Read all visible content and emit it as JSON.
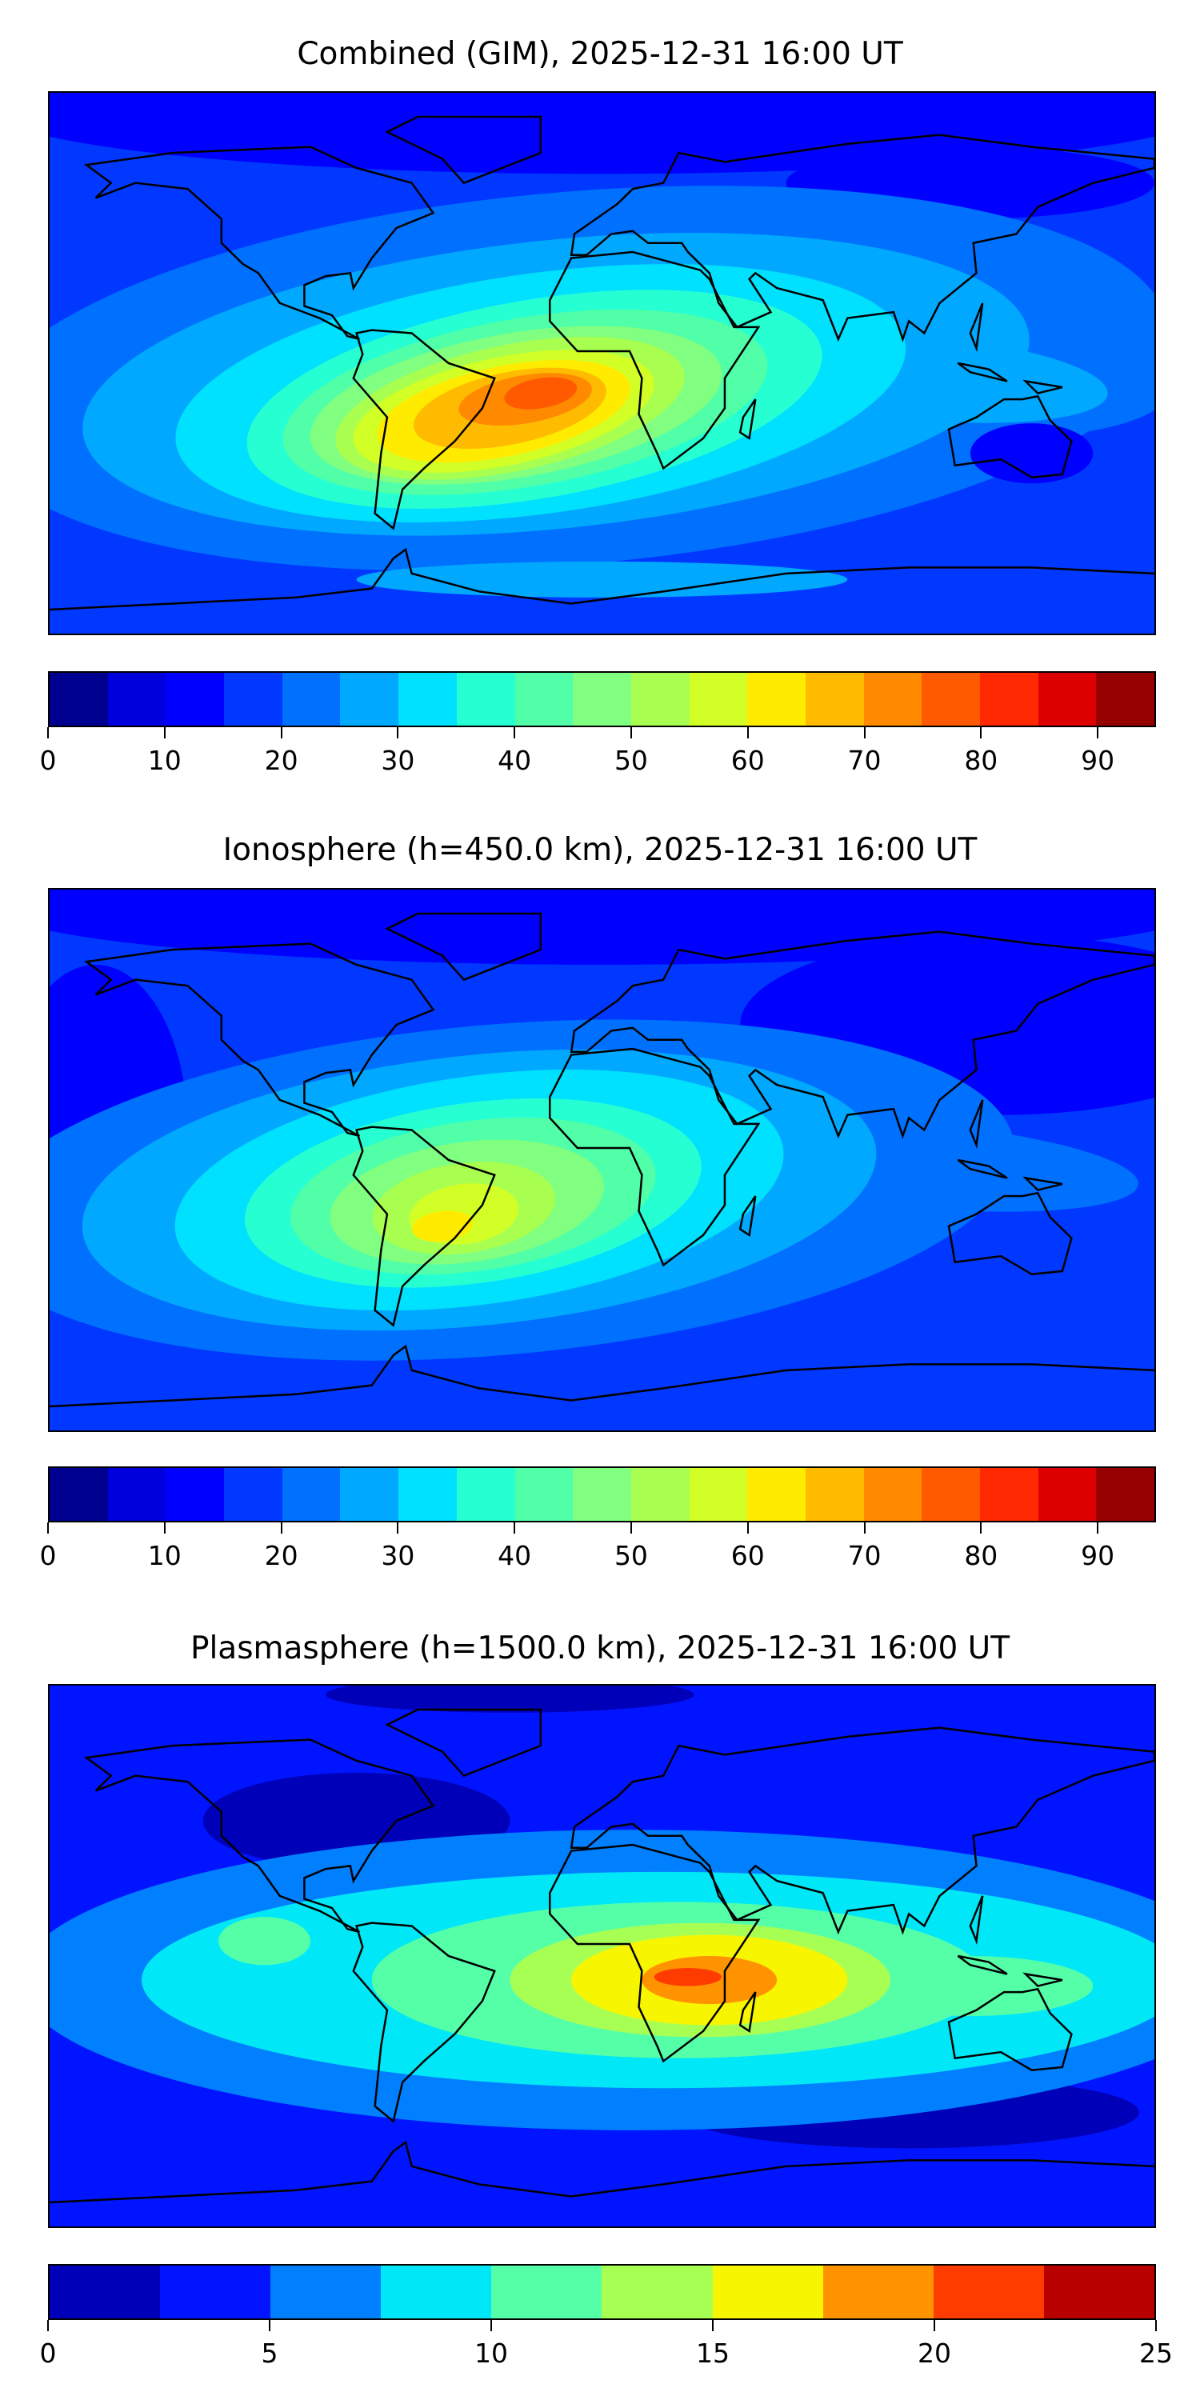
{
  "chart_data": [
    {
      "type": "heatmap",
      "title": "Combined (GIM), 2025-12-31 16:00 UT",
      "levels": [
        0,
        95
      ],
      "level_step": 5,
      "ticks": [
        "0",
        "10",
        "20",
        "30",
        "40",
        "50",
        "60",
        "70",
        "80",
        "90"
      ],
      "tick_values": [
        0,
        10,
        20,
        30,
        40,
        50,
        60,
        70,
        80,
        90
      ],
      "colors": [
        "#000090",
        "#0000dc",
        "#0000ff",
        "#0038ff",
        "#0070ff",
        "#00a8ff",
        "#00e0ff",
        "#26ffd2",
        "#50ffa8",
        "#80ff80",
        "#a8ff50",
        "#d2ff26",
        "#ffeb00",
        "#ffbb00",
        "#ff8a00",
        "#ff5a00",
        "#ff2800",
        "#dc0000",
        "#960000"
      ],
      "peak_region": "South America / South Atlantic",
      "approx_peak_value": 80
    },
    {
      "type": "heatmap",
      "title": "Ionosphere  (h=450.0 km), 2025-12-31 16:00 UT",
      "levels": [
        0,
        95
      ],
      "level_step": 5,
      "ticks": [
        "0",
        "10",
        "20",
        "30",
        "40",
        "50",
        "60",
        "70",
        "80",
        "90"
      ],
      "tick_values": [
        0,
        10,
        20,
        30,
        40,
        50,
        60,
        70,
        80,
        90
      ],
      "colors": [
        "#000090",
        "#0000dc",
        "#0000ff",
        "#0038ff",
        "#0070ff",
        "#00a8ff",
        "#00e0ff",
        "#26ffd2",
        "#50ffa8",
        "#80ff80",
        "#a8ff50",
        "#d2ff26",
        "#ffeb00",
        "#ffbb00",
        "#ff8a00",
        "#ff5a00",
        "#ff2800",
        "#dc0000",
        "#960000"
      ],
      "peak_region": "South America",
      "approx_peak_value": 60
    },
    {
      "type": "heatmap",
      "title": "Plasmasphere (h=1500.0 km), 2025-12-31 16:00 UT",
      "levels": [
        0,
        25
      ],
      "level_step": 2.5,
      "ticks": [
        "0",
        "5",
        "10",
        "15",
        "20",
        "25"
      ],
      "tick_values": [
        0,
        5,
        10,
        15,
        20,
        25
      ],
      "colors": [
        "#0000b8",
        "#0014ff",
        "#0080ff",
        "#00e8f8",
        "#54ffa8",
        "#a8ff54",
        "#f8f500",
        "#ff9400",
        "#ff3c00",
        "#b80000"
      ],
      "peak_region": "East Africa",
      "approx_peak_value": 20
    }
  ]
}
